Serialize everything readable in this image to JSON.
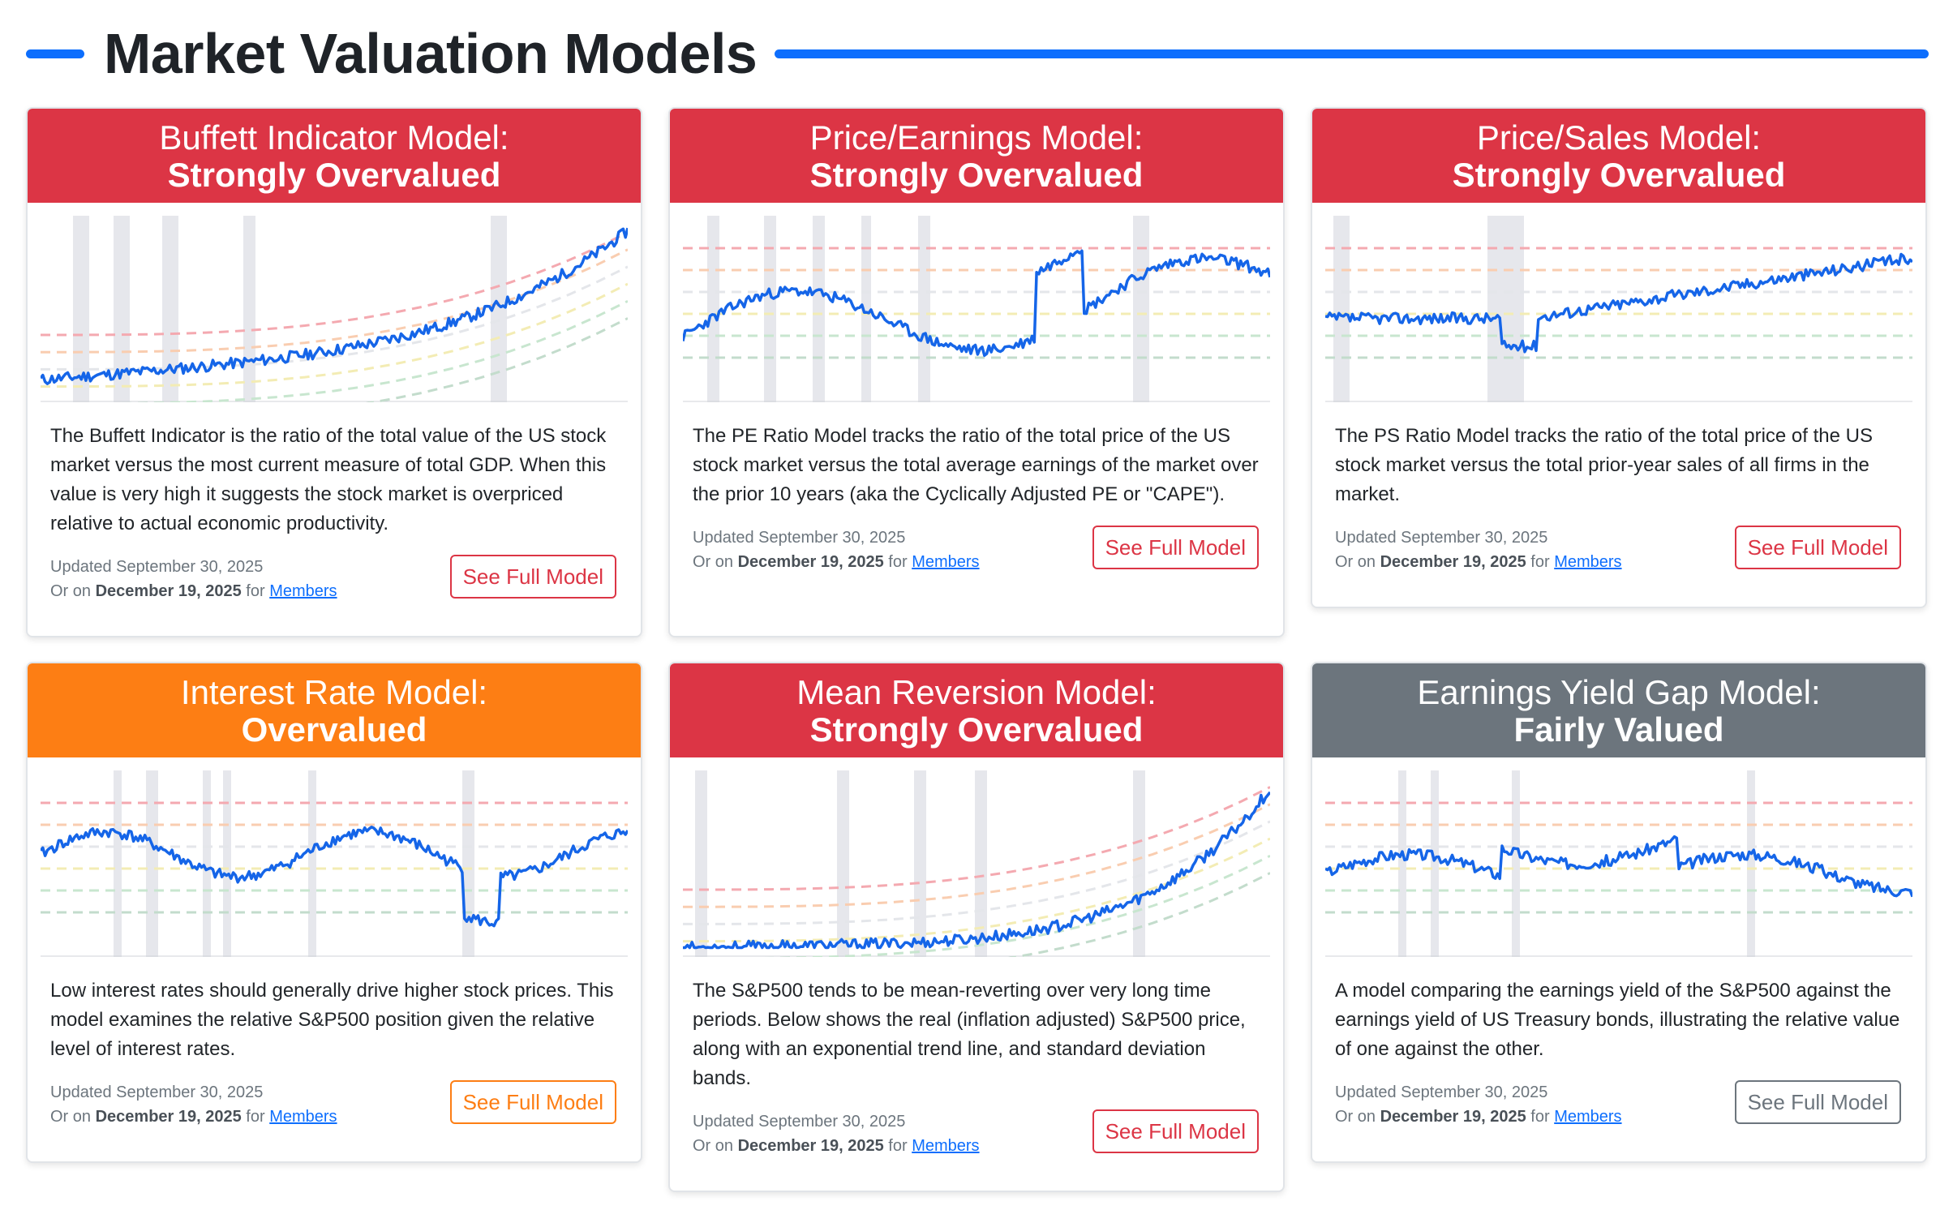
{
  "page": {
    "title": "Market Valuation Models",
    "accent": "#0d6efd"
  },
  "colors": {
    "red": "#dc3545",
    "orange": "#fd7e14",
    "gray": "#6c757d",
    "line": "#1565e8"
  },
  "cards": [
    {
      "model": "Buffett Indicator Model:",
      "status": "Strongly Overvalued",
      "color": "#dc3545",
      "description": "The Buffett Indicator is the ratio of the total value of the US stock market versus the most current measure of total GDP. When this value is very high it suggests the stock market is overpriced relative to actual economic productivity.",
      "updated": "Updated September 30, 2025",
      "or_on": "Or on",
      "member_date": "December 19, 2025",
      "for_text": "for",
      "members_link": "Members",
      "button": "See Full Model"
    },
    {
      "model": "Price/Earnings Model:",
      "status": "Strongly Overvalued",
      "color": "#dc3545",
      "description": "The PE Ratio Model tracks the ratio of the total price of the US stock market versus the total average earnings of the market over the prior 10 years (aka the Cyclically Adjusted PE or \"CAPE\").",
      "updated": "Updated September 30, 2025",
      "or_on": "Or on",
      "member_date": "December 19, 2025",
      "for_text": "for",
      "members_link": "Members",
      "button": "See Full Model"
    },
    {
      "model": "Price/Sales Model:",
      "status": "Strongly Overvalued",
      "color": "#dc3545",
      "description": "The PS Ratio Model tracks the ratio of the total price of the US stock market versus the total prior-year sales of all firms in the market.",
      "updated": "Updated September 30, 2025",
      "or_on": "Or on",
      "member_date": "December 19, 2025",
      "for_text": "for",
      "members_link": "Members",
      "button": "See Full Model"
    },
    {
      "model": "Interest Rate Model:",
      "status": "Overvalued",
      "color": "#fd7e14",
      "description": "Low interest rates should generally drive higher stock prices. This model examines the relative S&P500 position given the relative level of interest rates.",
      "updated": "Updated September 30, 2025",
      "or_on": "Or on",
      "member_date": "December 19, 2025",
      "for_text": "for",
      "members_link": "Members",
      "button": "See Full Model"
    },
    {
      "model": "Mean Reversion Model:",
      "status": "Strongly Overvalued",
      "color": "#dc3545",
      "description": "The S&P500 tends to be mean-reverting over very long time periods. Below shows the real (inflation adjusted) S&P500 price, along with an exponential trend line, and standard deviation bands.",
      "updated": "Updated September 30, 2025",
      "or_on": "Or on",
      "member_date": "December 19, 2025",
      "for_text": "for",
      "members_link": "Members",
      "button": "See Full Model"
    },
    {
      "model": "Earnings Yield Gap Model:",
      "status": "Fairly Valued",
      "color": "#6c757d",
      "description": "A model comparing the earnings yield of the S&P500 against the earnings yield of US Treasury bonds, illustrating the relative value of one against the other.",
      "updated": "Updated September 30, 2025",
      "or_on": "Or on",
      "member_date": "December 19, 2025",
      "for_text": "for",
      "members_link": "Members",
      "button": "See Full Model"
    }
  ]
}
